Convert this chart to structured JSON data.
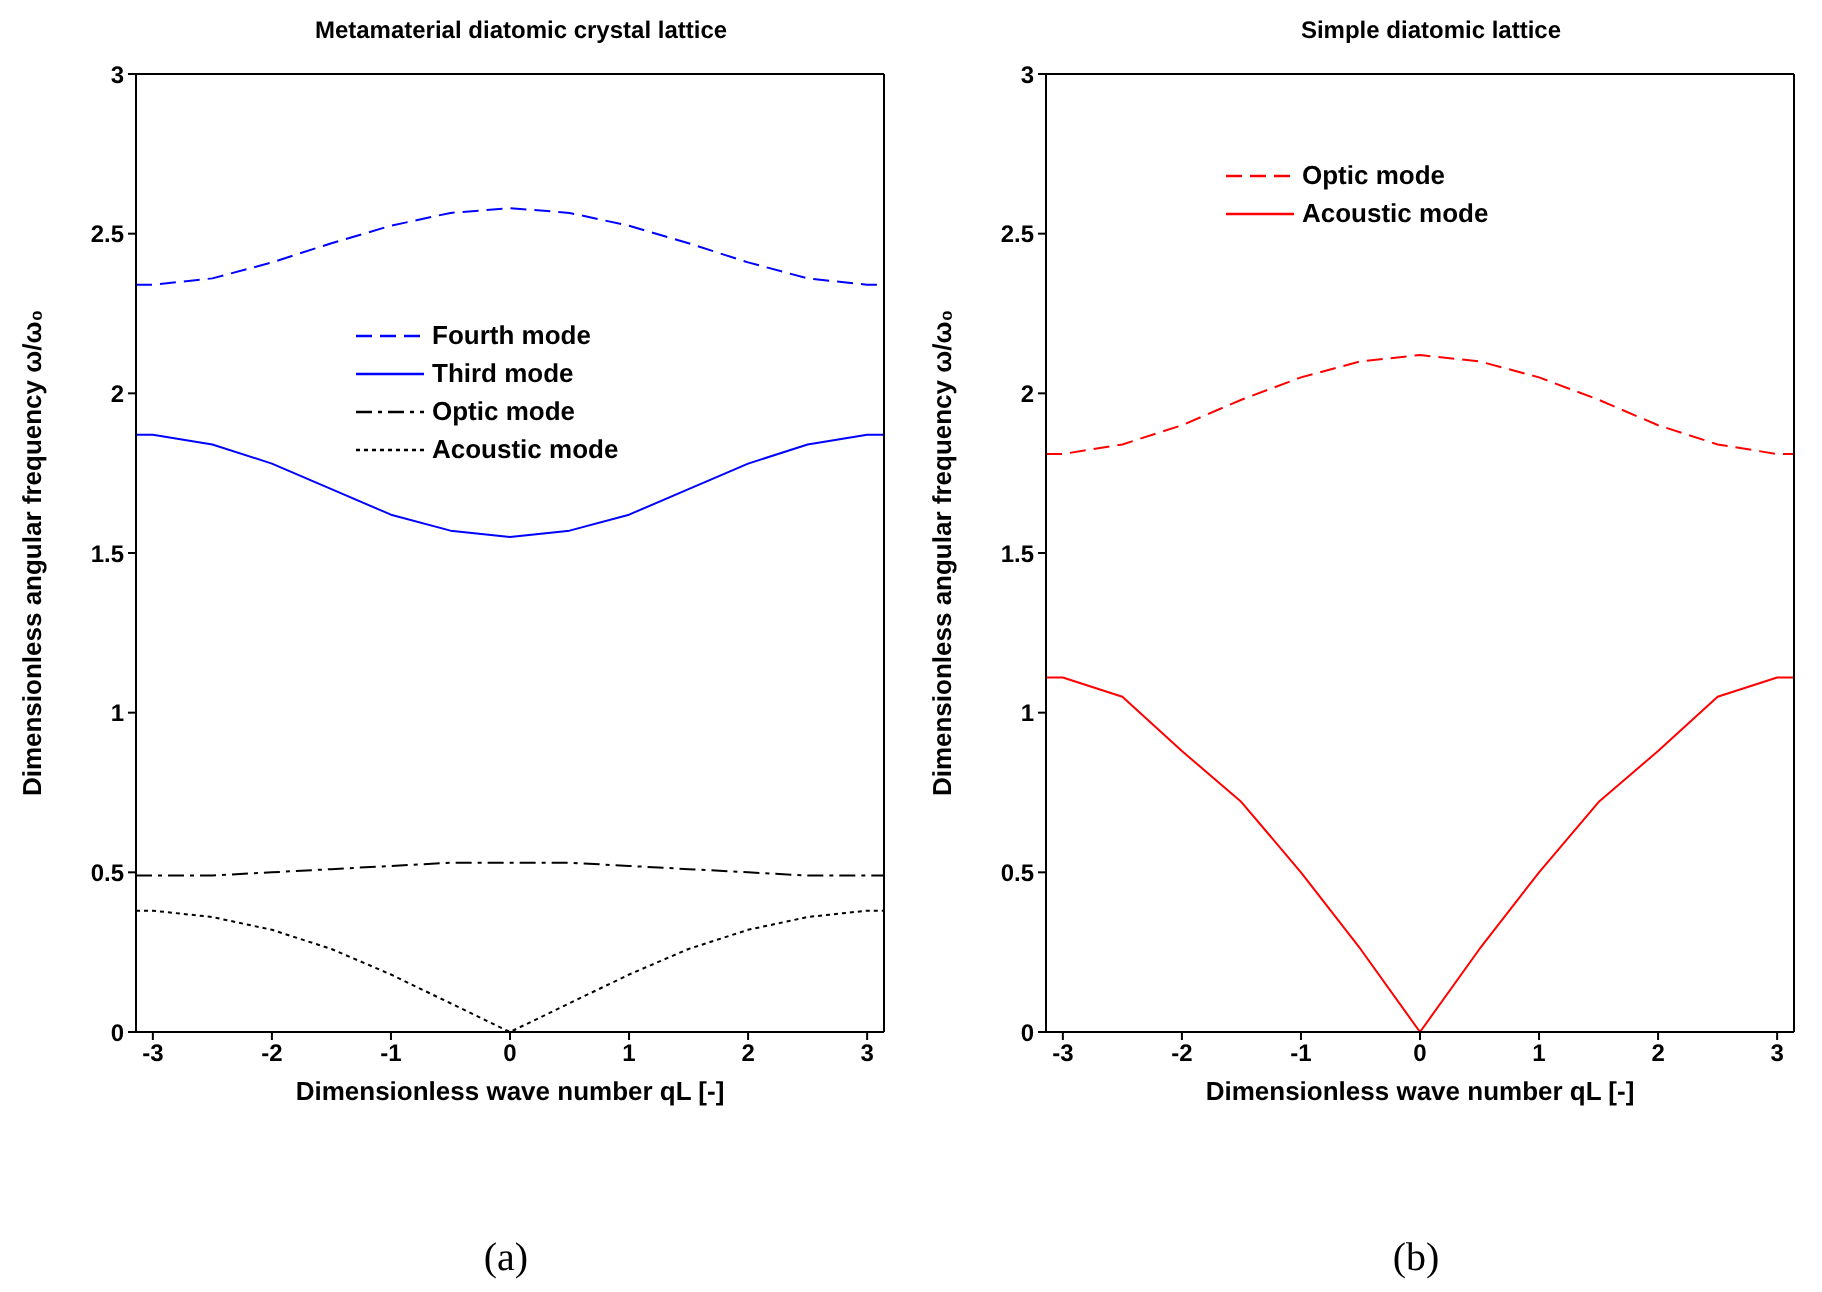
{
  "chart_data": [
    {
      "type": "line",
      "title": "Metamaterial diatomic crystal lattice",
      "xlabel": "Dimensionless wave number qL [-]",
      "ylabel": "Dimensionless angular frequency ω/ω₀",
      "annotations": [
        "(a)"
      ],
      "x": [
        -3.1416,
        -3,
        -2.5,
        -2,
        -1.5,
        -1,
        -0.5,
        0,
        0.5,
        1,
        1.5,
        2,
        2.5,
        3,
        3.1416
      ],
      "series": [
        {
          "name": "Fourth mode",
          "color": "#0000ff",
          "line_style": "dashed",
          "values": [
            2.34,
            2.34,
            2.36,
            2.41,
            2.47,
            2.525,
            2.565,
            2.58,
            2.565,
            2.525,
            2.47,
            2.41,
            2.36,
            2.34,
            2.34
          ]
        },
        {
          "name": "Third mode",
          "color": "#0000ff",
          "line_style": "solid",
          "values": [
            1.87,
            1.87,
            1.84,
            1.78,
            1.7,
            1.62,
            1.57,
            1.55,
            1.57,
            1.62,
            1.7,
            1.78,
            1.84,
            1.87,
            1.87
          ]
        },
        {
          "name": "Optic mode",
          "color": "#000000",
          "line_style": "dashdot",
          "values": [
            0.49,
            0.49,
            0.49,
            0.5,
            0.51,
            0.52,
            0.53,
            0.53,
            0.53,
            0.52,
            0.51,
            0.5,
            0.49,
            0.49,
            0.49
          ]
        },
        {
          "name": "Acoustic mode",
          "color": "#000000",
          "line_style": "dotted",
          "values": [
            0.38,
            0.38,
            0.36,
            0.32,
            0.26,
            0.18,
            0.09,
            0,
            0.09,
            0.18,
            0.26,
            0.32,
            0.36,
            0.38,
            0.38
          ]
        }
      ],
      "xlim": [
        -3.1416,
        3.1416
      ],
      "xticks": [
        -3,
        -2,
        -1,
        0,
        1,
        2,
        3
      ],
      "ylim": [
        0,
        3
      ],
      "yticks": [
        0,
        0.5,
        1,
        1.5,
        2,
        2.5,
        3
      ],
      "legend": "top",
      "marker": "none",
      "grid": false
    },
    {
      "type": "line",
      "title": "Simple diatomic lattice",
      "xlabel": "Dimensionless wave number qL [-]",
      "ylabel": "Dimensionless angular frequency ω/ω₀",
      "annotations": [
        "(b)"
      ],
      "x": [
        -3.1416,
        -3,
        -2.5,
        -2,
        -1.5,
        -1,
        -0.5,
        0,
        0.5,
        1,
        1.5,
        2,
        2.5,
        3,
        3.1416
      ],
      "series": [
        {
          "name": "Optic mode",
          "color": "#ff0000",
          "line_style": "dashed",
          "values": [
            1.81,
            1.81,
            1.84,
            1.9,
            1.98,
            2.05,
            2.1,
            2.12,
            2.1,
            2.05,
            1.98,
            1.9,
            1.84,
            1.81,
            1.81
          ]
        },
        {
          "name": "Acoustic mode",
          "color": "#ff0000",
          "line_style": "solid",
          "values": [
            1.11,
            1.11,
            1.05,
            0.88,
            0.72,
            0.5,
            0.26,
            0,
            0.26,
            0.5,
            0.72,
            0.88,
            1.05,
            1.11,
            1.11
          ]
        }
      ],
      "xlim": [
        -3.1416,
        3.1416
      ],
      "xticks": [
        -3,
        -2,
        -1,
        0,
        1,
        2,
        3
      ],
      "ylim": [
        0,
        3
      ],
      "yticks": [
        0,
        0.5,
        1,
        1.5,
        2,
        2.5,
        3
      ],
      "legend": "top left",
      "marker": "none",
      "grid": false
    }
  ]
}
